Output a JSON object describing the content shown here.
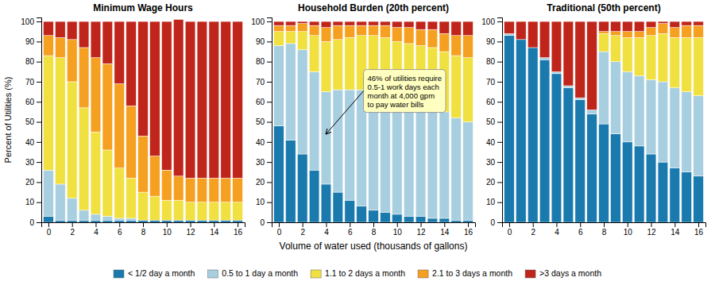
{
  "chart_data": [
    {
      "type": "bar",
      "stacked": true,
      "title": "Minimum Wage Hours",
      "ylabel": "Percent of Utilities (%)",
      "x": [
        0,
        1,
        2,
        3,
        4,
        5,
        6,
        7,
        8,
        9,
        10,
        11,
        12,
        13,
        14,
        15,
        16
      ],
      "xlim": [
        -0.6,
        16.6
      ],
      "xticks": [
        0,
        2,
        4,
        6,
        8,
        10,
        12,
        14,
        16
      ],
      "ylim": [
        0,
        102
      ],
      "yticks": [
        0,
        10,
        20,
        30,
        40,
        50,
        60,
        70,
        80,
        90,
        100
      ],
      "legend": "bottom",
      "series": [
        {
          "name": "< 1/2 day a month",
          "color": "#1a7aad",
          "values": [
            3,
            1,
            1,
            1,
            1,
            1,
            1,
            1,
            1,
            1,
            1,
            1,
            1,
            1,
            1,
            1,
            1
          ]
        },
        {
          "name": "0.5 to 1 day a month",
          "color": "#a8cfe0",
          "values": [
            23,
            18,
            11,
            5,
            3,
            2,
            1,
            1,
            0,
            0,
            0,
            0,
            0,
            0,
            0,
            0,
            0
          ]
        },
        {
          "name": "1.1 to 2 days a month",
          "color": "#f0e040",
          "values": [
            57,
            63,
            58,
            51,
            41,
            33,
            25,
            20,
            14,
            12,
            10,
            10,
            9,
            9,
            9,
            9,
            9
          ]
        },
        {
          "name": "2.1 to 3 days a month",
          "color": "#f5a020",
          "values": [
            10,
            10,
            21,
            30,
            37,
            43,
            42,
            36,
            28,
            20,
            15,
            12,
            12,
            12,
            12,
            12,
            12
          ]
        },
        {
          "name": ">3 days a month",
          "color": "#c0251b",
          "values": [
            7,
            8,
            9,
            13,
            18,
            21,
            31,
            42,
            57,
            67,
            74,
            78,
            78,
            78,
            78,
            78,
            78
          ]
        }
      ]
    },
    {
      "type": "bar",
      "stacked": true,
      "title": "Household Burden (20th percent)",
      "xlabel": "Volume of water used (thousands of gallons)",
      "x": [
        0,
        1,
        2,
        3,
        4,
        5,
        6,
        7,
        8,
        9,
        10,
        11,
        12,
        13,
        14,
        15,
        16
      ],
      "xlim": [
        -0.6,
        16.6
      ],
      "xticks": [
        0,
        2,
        4,
        6,
        8,
        10,
        12,
        14,
        16
      ],
      "ylim": [
        0,
        102
      ],
      "yticks": [
        0,
        10,
        20,
        30,
        40,
        50,
        60,
        70,
        80,
        90,
        100
      ],
      "annotations": [
        {
          "text": "46% of utilities require\n0.5-1 work days each\nmonth at 4,000 gpm\nto pay water bills",
          "xy": [
            4.0,
            44
          ],
          "xytext": [
            7.5,
            65
          ]
        }
      ],
      "series": [
        {
          "name": "< 1/2 day a month",
          "color": "#1a7aad",
          "values": [
            48,
            41,
            34,
            26,
            19,
            15,
            11,
            8,
            6,
            5,
            4,
            3,
            3,
            2,
            2,
            1,
            1
          ]
        },
        {
          "name": "0.5 to 1 day a month",
          "color": "#a8cfe0",
          "values": [
            40,
            48,
            52,
            49,
            46,
            51,
            55,
            58,
            60,
            60,
            60,
            59,
            57,
            56,
            53,
            51,
            49
          ]
        },
        {
          "name": "1.1 to 2 days a month",
          "color": "#f0e040",
          "values": [
            7,
            6,
            9,
            18,
            25,
            25,
            26,
            27,
            27,
            27,
            26,
            27,
            28,
            29,
            30,
            31,
            32
          ]
        },
        {
          "name": "2.1 to 3 days a month",
          "color": "#f5a020",
          "values": [
            3,
            3,
            4,
            5,
            7,
            7,
            6,
            5,
            5,
            6,
            7,
            8,
            8,
            9,
            9,
            10,
            11
          ]
        },
        {
          "name": ">3 days a month",
          "color": "#c0251b",
          "values": [
            2,
            2,
            1,
            2,
            3,
            2,
            2,
            2,
            2,
            2,
            3,
            3,
            4,
            4,
            6,
            7,
            7
          ]
        }
      ]
    },
    {
      "type": "bar",
      "stacked": true,
      "title": "Traditional (50th percent)",
      "x": [
        0,
        1,
        2,
        3,
        4,
        5,
        6,
        7,
        8,
        9,
        10,
        11,
        12,
        13,
        14,
        15,
        16
      ],
      "xlim": [
        -0.6,
        16.6
      ],
      "xticks": [
        0,
        2,
        4,
        6,
        8,
        10,
        12,
        14,
        16
      ],
      "ylim": [
        0,
        102
      ],
      "yticks": [
        0,
        10,
        20,
        30,
        40,
        50,
        60,
        70,
        80,
        90,
        100
      ],
      "series": [
        {
          "name": "< 1/2 day a month",
          "color": "#1a7aad",
          "values": [
            93,
            91,
            87,
            81,
            74,
            67,
            61,
            54,
            49,
            44,
            40,
            38,
            34,
            30,
            27,
            25,
            23
          ]
        },
        {
          "name": "0.5 to 1 day a month",
          "color": "#a8cfe0",
          "values": [
            1,
            0,
            0,
            1,
            1,
            1,
            1,
            2,
            36,
            36,
            35,
            35,
            37,
            40,
            40,
            40,
            40
          ]
        },
        {
          "name": "1.1 to 2 days a month",
          "color": "#f0e040",
          "values": [
            0,
            0,
            0,
            0,
            0,
            0,
            0,
            0,
            9,
            13,
            17,
            19,
            22,
            24,
            25,
            27,
            29
          ]
        },
        {
          "name": "2.1 to 3 days a month",
          "color": "#f5a020",
          "values": [
            0,
            0,
            0,
            0,
            0,
            0,
            0,
            0,
            1,
            2,
            3,
            3,
            4,
            5,
            5,
            6,
            6
          ]
        },
        {
          "name": ">3 days a month",
          "color": "#c0251b",
          "values": [
            6,
            9,
            13,
            18,
            25,
            32,
            38,
            44,
            5,
            5,
            5,
            5,
            3,
            1,
            3,
            2,
            2
          ]
        }
      ]
    }
  ]
}
